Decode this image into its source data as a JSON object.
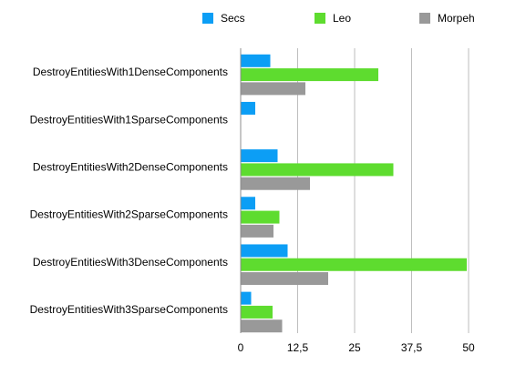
{
  "chart_data": {
    "type": "bar",
    "orientation": "horizontal",
    "categories": [
      "DestroyEntitiesWith1DenseComponents",
      "DestroyEntitiesWith1SparseComponents",
      "DestroyEntitiesWith2DenseComponents",
      "DestroyEntitiesWith2SparseComponents",
      "DestroyEntitiesWith3DenseComponents",
      "DestroyEntitiesWith3SparseComponents"
    ],
    "series": [
      {
        "name": "Secs",
        "color": "#0c9ef5",
        "values": [
          6.5,
          3.2,
          8.1,
          3.2,
          10.3,
          2.3
        ]
      },
      {
        "name": "Leo",
        "color": "#5edc2f",
        "values": [
          30.2,
          0,
          33.5,
          8.5,
          49.6,
          7.0
        ]
      },
      {
        "name": "Morpeh",
        "color": "#999999",
        "values": [
          14.2,
          0,
          15.2,
          7.2,
          19.2,
          9.1
        ]
      }
    ],
    "title": "",
    "xlabel": "",
    "ylabel": "",
    "xlim": [
      0,
      50
    ],
    "xticks": [
      0,
      12.5,
      25,
      37.5,
      50
    ],
    "xtick_labels": [
      "0",
      "12,5",
      "25",
      "37,5",
      "50"
    ],
    "grid": "vertical",
    "legend": "top"
  }
}
